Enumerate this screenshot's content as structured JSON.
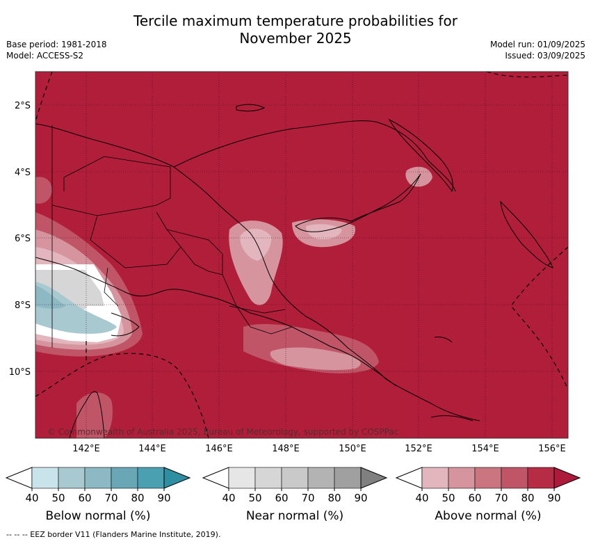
{
  "title_line1": "Tercile maximum temperature probabilities for",
  "title_line2": "November 2025",
  "base_period": "Base period: 1981-2018",
  "model": "Model: ACCESS-S2",
  "model_run": "Model run: 01/09/2025",
  "issued": "Issued: 03/09/2025",
  "copyright": "© Commonwealth of Australia 2025, Bureau of Meteorology, supported by COSPPac",
  "footer": "--  --  -- EEZ border V11 (Flanders Marine Institute, 2019).",
  "map": {
    "ocean_color": "#b01e3a",
    "lat_labels": [
      "2°S",
      "4°S",
      "6°S",
      "8°S",
      "10°S"
    ],
    "lon_labels": [
      "142°E",
      "144°E",
      "146°E",
      "148°E",
      "150°E",
      "152°E",
      "154°E",
      "156°E"
    ]
  },
  "colorbars": [
    {
      "title": "Below normal (%)",
      "ticks": [
        "40",
        "50",
        "60",
        "70",
        "80",
        "90"
      ],
      "colors": [
        "#ffffff",
        "#c9e3ea",
        "#a9c9d0",
        "#8db9c4",
        "#6aa7b6",
        "#4a9fb1",
        "#2e8fa3"
      ]
    },
    {
      "title": "Near normal (%)",
      "ticks": [
        "40",
        "50",
        "60",
        "70",
        "80",
        "90"
      ],
      "colors": [
        "#ffffff",
        "#e6e6e6",
        "#d6d6d6",
        "#c9c9c9",
        "#b3b3b3",
        "#a0a0a0",
        "#808080"
      ]
    },
    {
      "title": "Above normal (%)",
      "ticks": [
        "40",
        "50",
        "60",
        "70",
        "80",
        "90"
      ],
      "colors": [
        "#ffffff",
        "#e3b5bd",
        "#d5949e",
        "#ca7580",
        "#c05568",
        "#b52c44",
        "#ae1a3a"
      ]
    }
  ]
}
